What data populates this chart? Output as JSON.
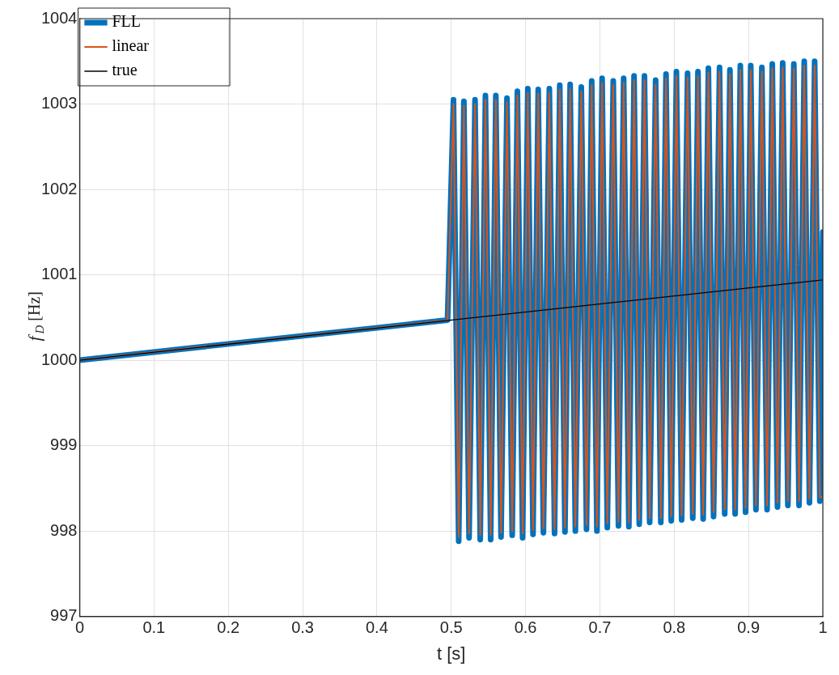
{
  "chart_data": {
    "type": "line",
    "xlabel": "t [s]",
    "ylabel": "f$_{D}$ [Hz]",
    "x": [
      0,
      0.495,
      0.503,
      0.51,
      0.517,
      0.524,
      0.532,
      0.539,
      0.546,
      0.553,
      0.56,
      0.567,
      0.575,
      0.582,
      0.589,
      0.596,
      0.603,
      0.61,
      0.617,
      0.624,
      0.632,
      0.639,
      0.646,
      0.653,
      0.66,
      0.667,
      0.675,
      0.682,
      0.689,
      0.696,
      0.703,
      0.71,
      0.718,
      0.725,
      0.732,
      0.739,
      0.746,
      0.753,
      0.76,
      0.767,
      0.775,
      0.782,
      0.789,
      0.796,
      0.803,
      0.81,
      0.818,
      0.825,
      0.832,
      0.839,
      0.846,
      0.853,
      0.861,
      0.868,
      0.875,
      0.882,
      0.889,
      0.896,
      0.903,
      0.91,
      0.918,
      0.925,
      0.932,
      0.939,
      0.946,
      0.953,
      0.961,
      0.968,
      0.975,
      0.982,
      0.989,
      0.996,
      1.0
    ],
    "series": [
      {
        "name": "FLL",
        "color": "#0072bd",
        "values": [
          1000.0,
          1000.47,
          1003.05,
          997.88,
          1003.03,
          997.92,
          1003.05,
          997.9,
          1003.1,
          997.9,
          1003.1,
          997.93,
          1003.07,
          997.95,
          1003.15,
          997.92,
          1003.18,
          997.96,
          1003.17,
          997.98,
          1003.18,
          997.97,
          1003.22,
          997.99,
          1003.23,
          998.0,
          1003.2,
          998.02,
          1003.27,
          998.0,
          1003.3,
          998.04,
          1003.27,
          998.06,
          1003.3,
          998.05,
          1003.33,
          998.08,
          1003.33,
          998.1,
          1003.28,
          998.1,
          1003.35,
          998.12,
          1003.38,
          998.13,
          1003.36,
          998.15,
          1003.38,
          998.14,
          1003.42,
          998.17,
          1003.43,
          998.2,
          1003.4,
          998.2,
          1003.45,
          998.22,
          1003.45,
          998.25,
          1003.43,
          998.25,
          1003.47,
          998.28,
          1003.48,
          998.3,
          1003.47,
          998.3,
          1003.5,
          998.33,
          1003.5,
          998.35,
          1001.5
        ]
      },
      {
        "name": "linear",
        "color": "#d95319",
        "values": [
          1000.0,
          1000.47,
          1003.0,
          997.93,
          1002.98,
          997.97,
          1003.0,
          997.95,
          1003.05,
          997.95,
          1003.05,
          997.98,
          1003.02,
          998.0,
          1003.1,
          997.97,
          1003.13,
          998.01,
          1003.12,
          998.03,
          1003.13,
          998.02,
          1003.17,
          998.04,
          1003.18,
          998.05,
          1003.15,
          998.07,
          1003.22,
          998.05,
          1003.25,
          998.09,
          1003.22,
          998.11,
          1003.25,
          998.1,
          1003.28,
          998.13,
          1003.28,
          998.15,
          1003.23,
          998.15,
          1003.3,
          998.17,
          1003.33,
          998.18,
          1003.31,
          998.2,
          1003.33,
          998.19,
          1003.37,
          998.22,
          1003.38,
          998.25,
          1003.35,
          998.25,
          1003.4,
          998.27,
          1003.4,
          998.3,
          1003.38,
          998.3,
          1003.42,
          998.33,
          1003.43,
          998.35,
          1003.42,
          998.35,
          1003.45,
          998.38,
          1003.45,
          998.4,
          998.4
        ]
      },
      {
        "name": "true",
        "color": "#000000",
        "x": [
          0,
          1.0
        ],
        "values": [
          1000.0,
          1000.94
        ]
      }
    ],
    "xlim": [
      0,
      1
    ],
    "xticks": [
      0,
      0.1,
      0.2,
      0.3,
      0.4,
      0.5,
      0.6,
      0.7,
      0.8,
      0.9,
      1
    ],
    "ylim": [
      997,
      1004
    ],
    "yticks": [
      997,
      998,
      999,
      1000,
      1001,
      1002,
      1003,
      1004
    ],
    "grid": true,
    "legend": "top left",
    "marker": "none",
    "line_style": "solid"
  }
}
